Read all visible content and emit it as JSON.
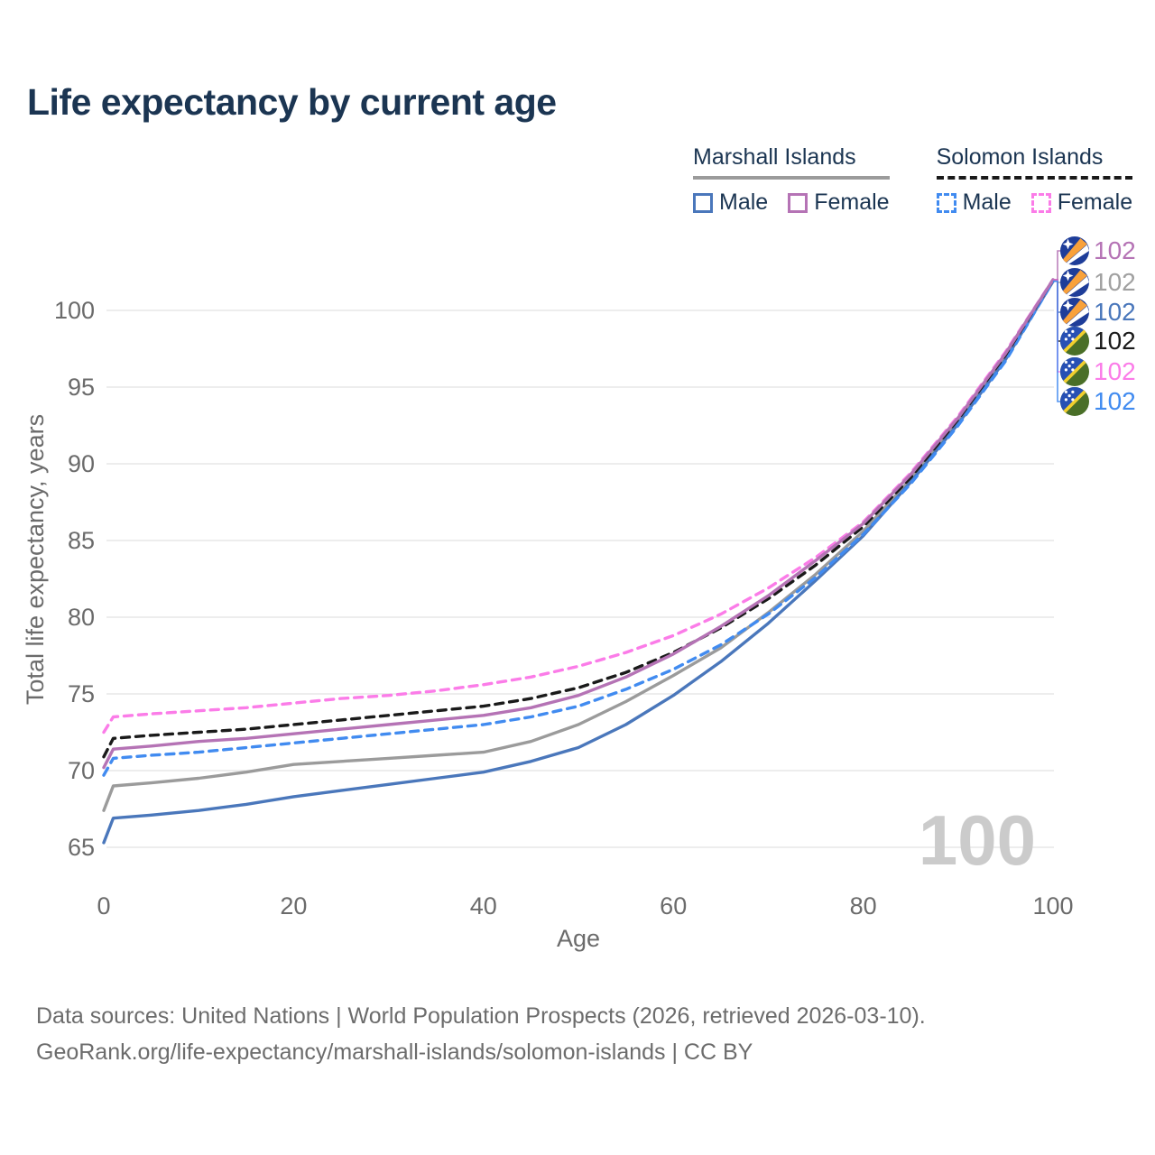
{
  "page": {
    "title": "Life expectancy by current age"
  },
  "legend": {
    "groups": [
      {
        "name": "Marshall Islands",
        "underline_style": "solid",
        "underline_color": "#9b9b9b",
        "items": [
          {
            "label": "Male",
            "color": "#4a77bb",
            "dash": false
          },
          {
            "label": "Female",
            "color": "#b573b5",
            "dash": false
          }
        ]
      },
      {
        "name": "Solomon Islands",
        "underline_style": "dashed",
        "underline_color": "#1a1a1a",
        "items": [
          {
            "label": "Male",
            "color": "#418bf0",
            "dash": true
          },
          {
            "label": "Female",
            "color": "#fb7ce8",
            "dash": true
          }
        ]
      }
    ]
  },
  "chart_data": {
    "type": "line",
    "title": "Life expectancy by current age",
    "xlabel": "Age",
    "ylabel": "Total life expectancy, years",
    "xlim": [
      0,
      100
    ],
    "ylim": [
      63.5,
      103.5
    ],
    "xticks": [
      0,
      20,
      40,
      60,
      80,
      100
    ],
    "yticks": [
      65,
      70,
      75,
      80,
      85,
      90,
      95,
      100
    ],
    "grid": "horizontal",
    "legend_position": "top-right",
    "watermark": "100",
    "x": [
      0,
      1,
      5,
      10,
      15,
      20,
      25,
      30,
      35,
      40,
      45,
      50,
      55,
      60,
      65,
      70,
      75,
      80,
      85,
      90,
      95,
      100
    ],
    "series": [
      {
        "name": "Marshall Islands Female",
        "country": "Marshall Islands",
        "sex": "Female",
        "flag": "marshall-islands",
        "color": "#b573b5",
        "dash": false,
        "draw_order": 6,
        "end_label": "102",
        "values": [
          70.2,
          71.4,
          71.6,
          71.9,
          72.1,
          72.4,
          72.7,
          73.0,
          73.3,
          73.6,
          74.1,
          74.9,
          76.1,
          77.6,
          79.4,
          81.4,
          83.7,
          86.1,
          89.3,
          93.0,
          97.2,
          102.0
        ]
      },
      {
        "name": "Marshall Islands Total",
        "country": "Marshall Islands",
        "sex": "Both sexes",
        "flag": "marshall-islands",
        "color": "#9b9b9b",
        "dash": false,
        "draw_order": 1,
        "end_label": "102",
        "values": [
          67.4,
          69.0,
          69.2,
          69.5,
          69.9,
          70.4,
          70.6,
          70.8,
          71.0,
          71.2,
          71.9,
          73.0,
          74.5,
          76.2,
          78.0,
          80.3,
          82.8,
          85.6,
          89.0,
          92.8,
          97.0,
          101.9
        ]
      },
      {
        "name": "Marshall Islands Male",
        "country": "Marshall Islands",
        "sex": "Male",
        "flag": "marshall-islands",
        "color": "#4a77bb",
        "dash": false,
        "draw_order": 2,
        "end_label": "102",
        "values": [
          65.3,
          66.9,
          67.1,
          67.4,
          67.8,
          68.3,
          68.7,
          69.1,
          69.5,
          69.9,
          70.6,
          71.5,
          73.0,
          74.9,
          77.1,
          79.6,
          82.4,
          85.3,
          88.8,
          92.6,
          96.8,
          101.9
        ]
      },
      {
        "name": "Solomon Islands Total",
        "country": "Solomon Islands",
        "sex": "Both sexes",
        "flag": "solomon-islands",
        "color": "#1a1a1a",
        "dash": true,
        "draw_order": 4,
        "end_label": "102",
        "values": [
          70.9,
          72.1,
          72.3,
          72.5,
          72.7,
          73.0,
          73.3,
          73.6,
          73.9,
          74.2,
          74.7,
          75.4,
          76.4,
          77.7,
          79.3,
          81.2,
          83.4,
          85.9,
          89.1,
          92.9,
          97.1,
          102.0
        ]
      },
      {
        "name": "Solomon Islands Female",
        "country": "Solomon Islands",
        "sex": "Female",
        "flag": "solomon-islands",
        "color": "#fb7ce8",
        "dash": true,
        "draw_order": 5,
        "end_label": "102",
        "values": [
          72.5,
          73.5,
          73.7,
          73.9,
          74.1,
          74.4,
          74.7,
          74.9,
          75.2,
          75.6,
          76.1,
          76.8,
          77.7,
          78.8,
          80.2,
          81.9,
          83.9,
          86.2,
          89.4,
          93.1,
          97.3,
          102.0
        ]
      },
      {
        "name": "Solomon Islands Male",
        "country": "Solomon Islands",
        "sex": "Male",
        "flag": "solomon-islands",
        "color": "#418bf0",
        "dash": true,
        "draw_order": 3,
        "end_label": "102",
        "values": [
          69.7,
          70.8,
          71.0,
          71.2,
          71.5,
          71.8,
          72.1,
          72.4,
          72.7,
          73.0,
          73.5,
          74.2,
          75.3,
          76.6,
          78.2,
          80.2,
          82.6,
          85.4,
          88.7,
          92.5,
          96.7,
          101.9
        ]
      }
    ]
  },
  "colors": {
    "title_text": "#1b3552",
    "axis_text": "#6b6b6b",
    "gridline": "#e7e7e7",
    "watermark": "#cbcbcb",
    "footer_text": "#6c6c6c"
  },
  "footer": {
    "line1": "Data sources: United Nations | World Population Prospects (2026, retrieved 2026-03-10).",
    "line2": "GeoRank.org/life-expectancy/marshall-islands/solomon-islands | CC BY"
  }
}
